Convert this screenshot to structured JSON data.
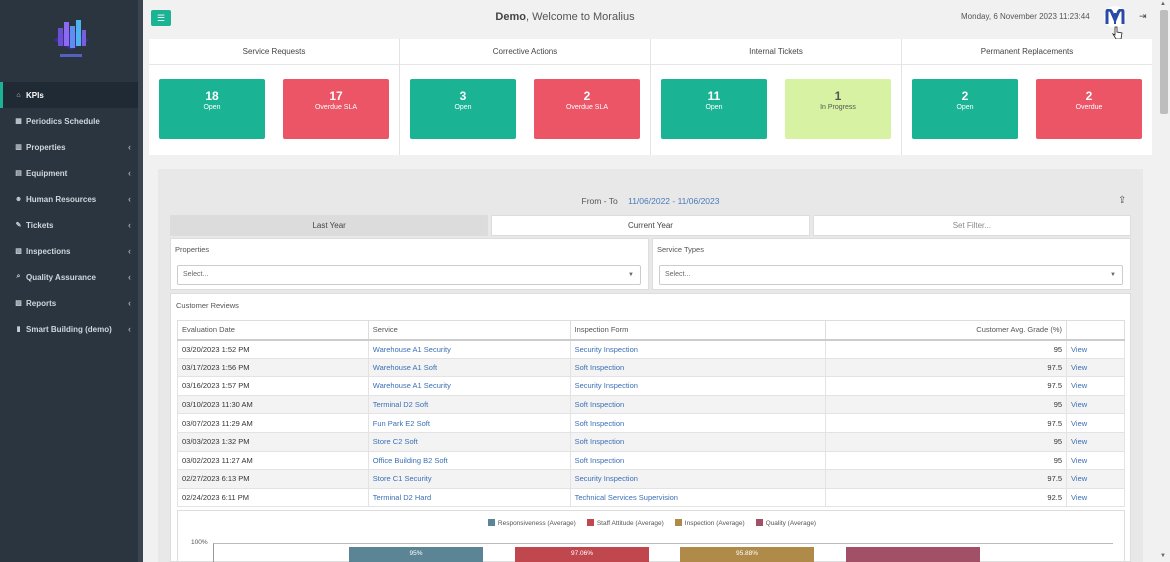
{
  "header": {
    "user": "Demo",
    "welcome_suffix": ", Welcome to Moralius",
    "datetime": "Monday, 6 November 2023 11:23:44"
  },
  "sidebar": {
    "items": [
      {
        "label": "KPIs",
        "icon": "home-icon",
        "active": true,
        "chevron": false
      },
      {
        "label": "Periodics Schedule",
        "icon": "calendar-icon",
        "active": false,
        "chevron": false
      },
      {
        "label": "Properties",
        "icon": "building-icon",
        "active": false,
        "chevron": true
      },
      {
        "label": "Equipment",
        "icon": "equipment-icon",
        "active": false,
        "chevron": true
      },
      {
        "label": "Human Resources",
        "icon": "users-icon",
        "active": false,
        "chevron": true
      },
      {
        "label": "Tickets",
        "icon": "wrench-icon",
        "active": false,
        "chevron": true
      },
      {
        "label": "Inspections",
        "icon": "map-icon",
        "active": false,
        "chevron": true
      },
      {
        "label": "Quality Assurance",
        "icon": "search-icon",
        "active": false,
        "chevron": true
      },
      {
        "label": "Reports",
        "icon": "book-icon",
        "active": false,
        "chevron": true
      },
      {
        "label": "Smart Building (demo)",
        "icon": "chart-icon",
        "active": false,
        "chevron": true
      }
    ]
  },
  "kpis": [
    {
      "title": "Service Requests",
      "boxes": [
        {
          "num": "18",
          "label": "Open",
          "color": "green"
        },
        {
          "num": "17",
          "label": "Overdue SLA",
          "color": "red"
        }
      ]
    },
    {
      "title": "Corrective Actions",
      "boxes": [
        {
          "num": "3",
          "label": "Open",
          "color": "green"
        },
        {
          "num": "2",
          "label": "Overdue SLA",
          "color": "red"
        }
      ]
    },
    {
      "title": "Internal Tickets",
      "boxes": [
        {
          "num": "11",
          "label": "Open",
          "color": "green"
        },
        {
          "num": "1",
          "label": "In Progress",
          "color": "lime"
        }
      ]
    },
    {
      "title": "Permanent Replacements",
      "boxes": [
        {
          "num": "2",
          "label": "Open",
          "color": "green"
        },
        {
          "num": "2",
          "label": "Overdue",
          "color": "red"
        }
      ]
    }
  ],
  "filters": {
    "range_label": "From - To",
    "range_value": "11/06/2022 - 11/06/2023",
    "tabs": [
      "Last Year",
      "Current Year",
      "Set Filter..."
    ],
    "properties_label": "Properties",
    "properties_placeholder": "Select...",
    "service_types_label": "Service Types",
    "service_types_placeholder": "Select..."
  },
  "reviews": {
    "title": "Customer Reviews",
    "columns": [
      "Evaluation Date",
      "Service",
      "Inspection Form",
      "Customer Avg. Grade (%)",
      ""
    ],
    "rows": [
      [
        "03/20/2023 1:52 PM",
        "Warehouse A1 Security",
        "Security Inspection",
        "95",
        "View"
      ],
      [
        "03/17/2023 1:56 PM",
        "Warehouse A1 Soft",
        "Soft Inspection",
        "97.5",
        "View"
      ],
      [
        "03/16/2023 1:57 PM",
        "Warehouse A1 Security",
        "Security Inspection",
        "97.5",
        "View"
      ],
      [
        "03/10/2023 11:30 AM",
        "Terminal D2 Soft",
        "Soft Inspection",
        "95",
        "View"
      ],
      [
        "03/07/2023 11:29 AM",
        "Fun Park E2 Soft",
        "Soft Inspection",
        "97.5",
        "View"
      ],
      [
        "03/03/2023 1:32 PM",
        "Store C2 Soft",
        "Soft Inspection",
        "95",
        "View"
      ],
      [
        "03/02/2023 11:27 AM",
        "Office Building B2 Soft",
        "Soft Inspection",
        "95",
        "View"
      ],
      [
        "02/27/2023 6:13 PM",
        "Store C1 Security",
        "Security Inspection",
        "97.5",
        "View"
      ],
      [
        "02/24/2023 6:11 PM",
        "Terminal D2 Hard",
        "Technical Services Supervision",
        "92.5",
        "View"
      ]
    ]
  },
  "chart_data": {
    "type": "bar",
    "series": [
      {
        "name": "Responsiveness (Average)",
        "color": "#5b8595",
        "label": "95%"
      },
      {
        "name": "Staff Attitude (Average)",
        "color": "#c0474d",
        "label": "97.06%"
      },
      {
        "name": "Inspection (Average)",
        "color": "#b08a48",
        "label": "95.88%"
      },
      {
        "name": "Quality (Average)",
        "color": "#a25068",
        "label": ""
      }
    ],
    "y_tick": "100%"
  }
}
